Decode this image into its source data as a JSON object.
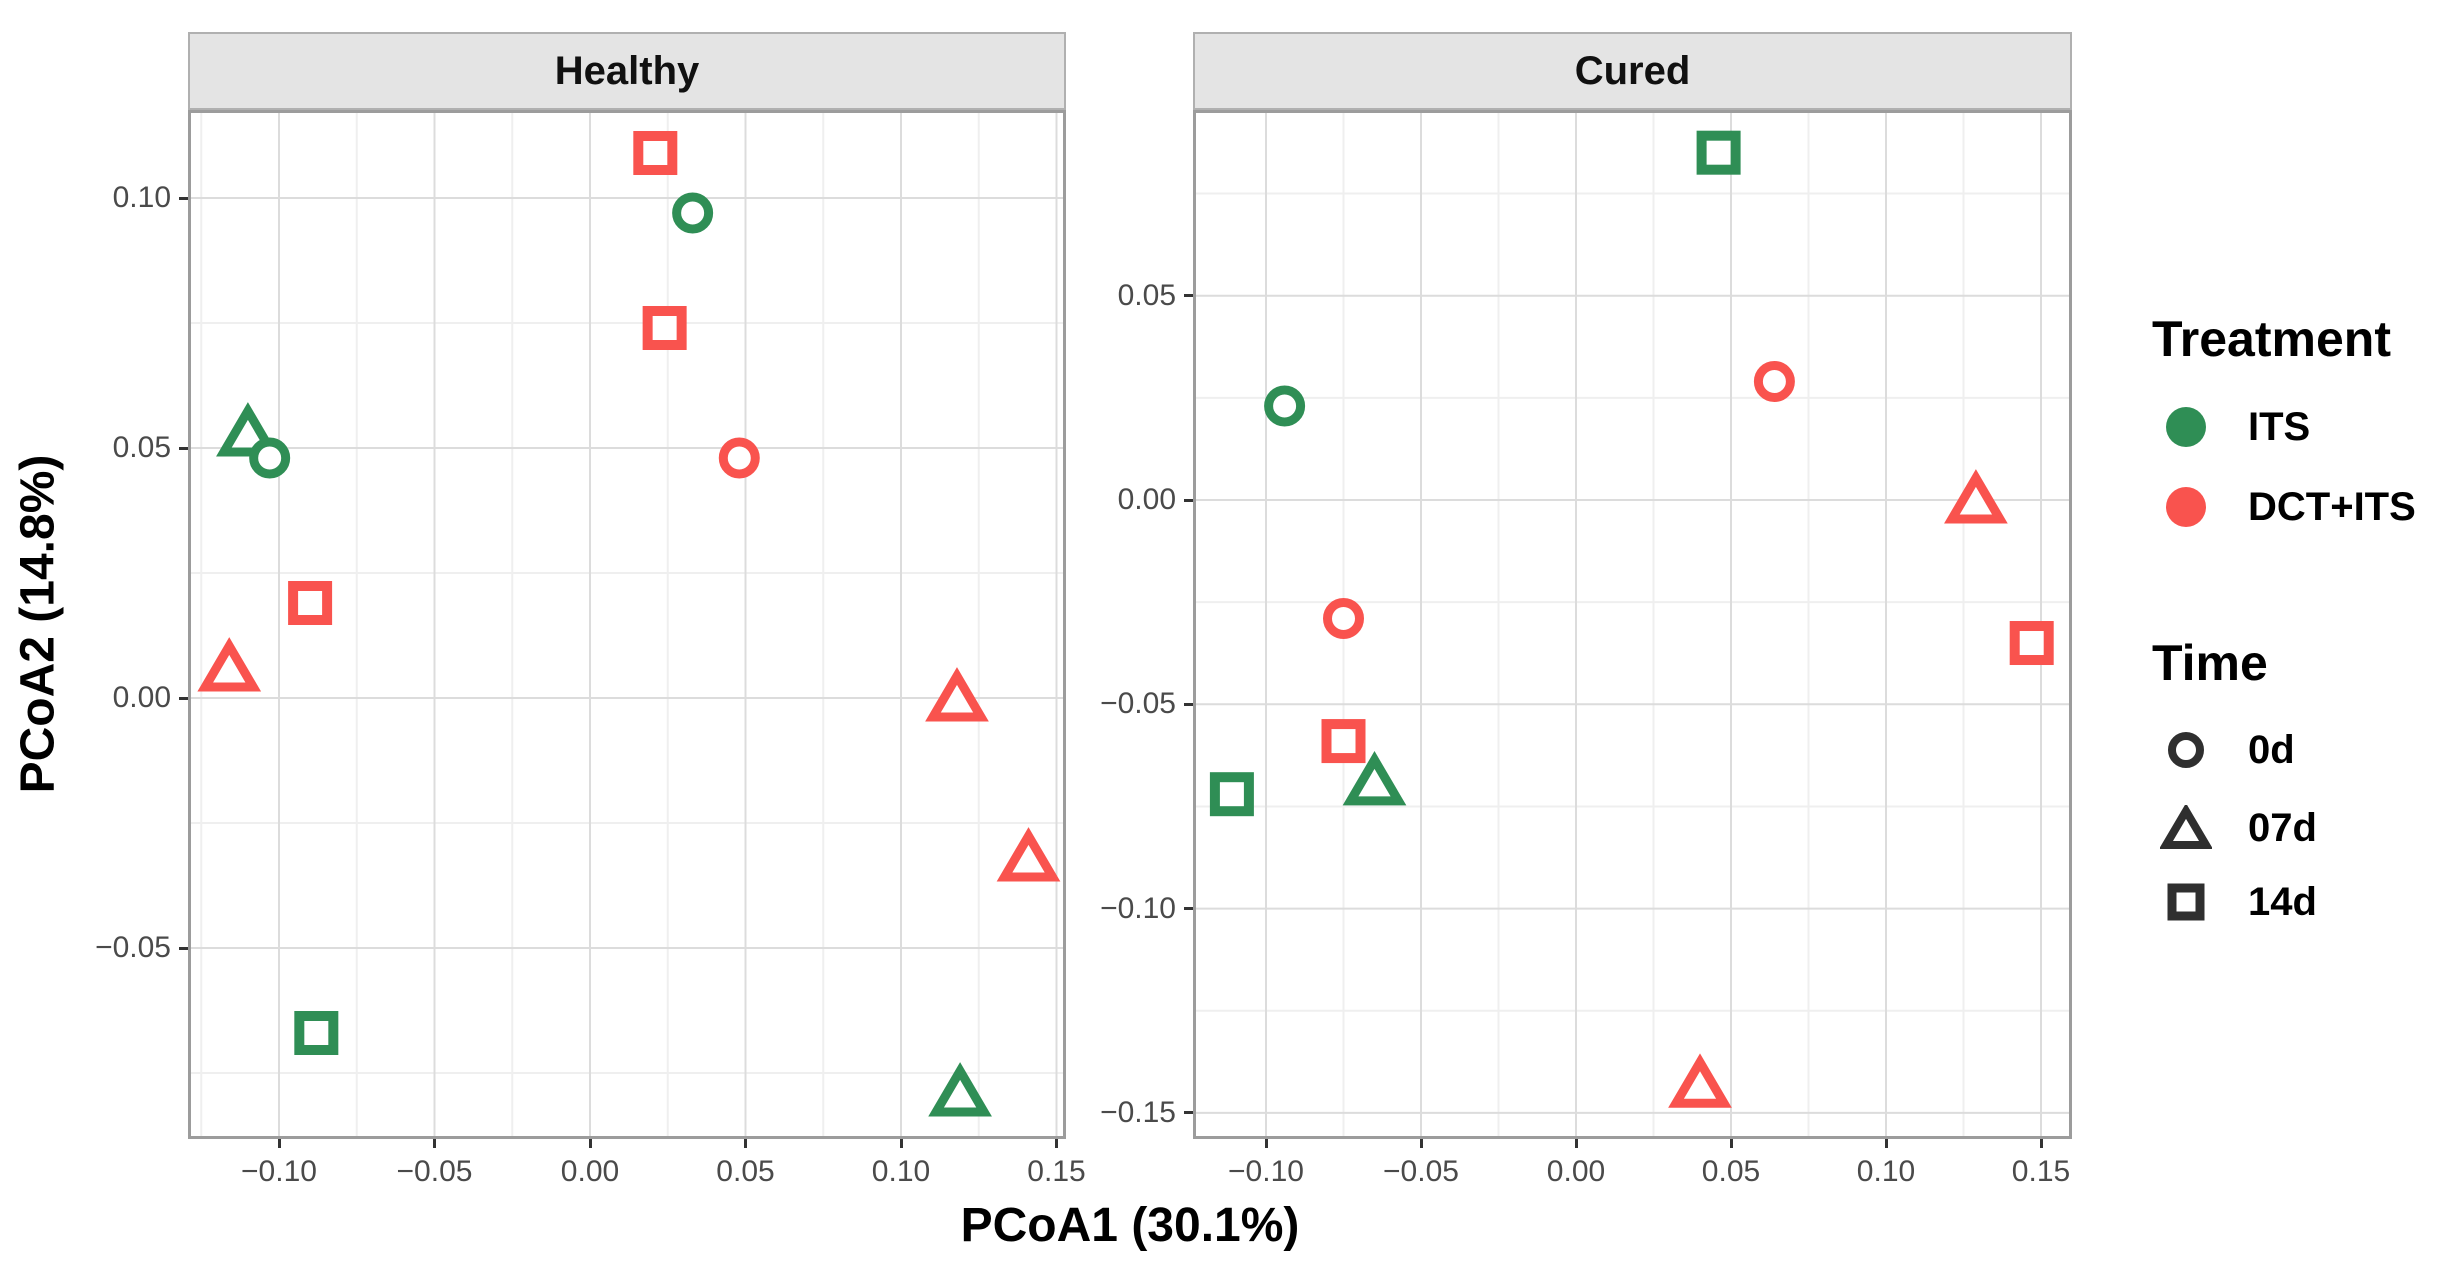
{
  "chart_data": {
    "type": "scatter",
    "faceted": true,
    "xlabel": "PCoA1 (30.1%)",
    "ylabel": "PCoA2 (14.8%)",
    "grid": "major+minor",
    "colors": {
      "ITS": "#2F8E55",
      "DCT+ITS": "#F9534E",
      "time_glyph": "#2F2F2F"
    },
    "shapes_by_time": {
      "0d": "circle",
      "07d": "triangle",
      "14d": "square"
    },
    "legend": {
      "treatment": {
        "title": "Treatment",
        "items": [
          {
            "label": "ITS",
            "color": "#2F8E55"
          },
          {
            "label": "DCT+ITS",
            "color": "#F9534E"
          }
        ]
      },
      "time": {
        "title": "Time",
        "items": [
          {
            "label": "0d",
            "shape": "circle"
          },
          {
            "label": "07d",
            "shape": "triangle"
          },
          {
            "label": "14d",
            "shape": "square"
          }
        ]
      }
    },
    "panels": [
      {
        "title": "Healthy",
        "x_domain": [
          -0.1293,
          0.1531
        ],
        "y_domain": [
          -0.0882,
          0.1176
        ],
        "x_ticks": [
          {
            "v": -0.1,
            "label": "−0.10"
          },
          {
            "v": -0.05,
            "label": "−0.05"
          },
          {
            "v": 0.0,
            "label": "0.00"
          },
          {
            "v": 0.05,
            "label": "0.05"
          },
          {
            "v": 0.1,
            "label": "0.10"
          },
          {
            "v": 0.15,
            "label": "0.15"
          }
        ],
        "y_ticks": [
          {
            "v": 0.1,
            "label": "0.10"
          },
          {
            "v": 0.05,
            "label": "0.05"
          },
          {
            "v": 0.0,
            "label": "0.00"
          },
          {
            "v": -0.05,
            "label": "−0.05"
          }
        ],
        "x_minor": [
          -0.125,
          -0.075,
          -0.025,
          0.025,
          0.075,
          0.125
        ],
        "y_minor": [
          0.075,
          0.025,
          -0.025,
          -0.075
        ],
        "points": [
          {
            "x": 0.021,
            "y": 0.109,
            "treatment": "DCT+ITS",
            "time": "14d"
          },
          {
            "x": 0.033,
            "y": 0.097,
            "treatment": "ITS",
            "time": "0d"
          },
          {
            "x": 0.024,
            "y": 0.074,
            "treatment": "DCT+ITS",
            "time": "14d"
          },
          {
            "x": 0.048,
            "y": 0.048,
            "treatment": "DCT+ITS",
            "time": "0d"
          },
          {
            "x": -0.11,
            "y": 0.053,
            "treatment": "ITS",
            "time": "07d"
          },
          {
            "x": -0.103,
            "y": 0.048,
            "treatment": "ITS",
            "time": "0d"
          },
          {
            "x": -0.09,
            "y": 0.019,
            "treatment": "DCT+ITS",
            "time": "14d"
          },
          {
            "x": -0.116,
            "y": 0.006,
            "treatment": "DCT+ITS",
            "time": "07d"
          },
          {
            "x": 0.118,
            "y": 0.0,
            "treatment": "DCT+ITS",
            "time": "07d"
          },
          {
            "x": 0.141,
            "y": -0.032,
            "treatment": "DCT+ITS",
            "time": "07d"
          },
          {
            "x": -0.088,
            "y": -0.067,
            "treatment": "ITS",
            "time": "14d"
          },
          {
            "x": 0.119,
            "y": -0.079,
            "treatment": "ITS",
            "time": "07d"
          }
        ]
      },
      {
        "title": "Cured",
        "x_domain": [
          -0.1235,
          0.16
        ],
        "y_domain": [
          -0.1564,
          0.0954
        ],
        "x_ticks": [
          {
            "v": -0.1,
            "label": "−0.10"
          },
          {
            "v": -0.05,
            "label": "−0.05"
          },
          {
            "v": 0.0,
            "label": "0.00"
          },
          {
            "v": 0.05,
            "label": "0.05"
          },
          {
            "v": 0.1,
            "label": "0.10"
          },
          {
            "v": 0.15,
            "label": "0.15"
          }
        ],
        "y_ticks": [
          {
            "v": 0.05,
            "label": "0.05"
          },
          {
            "v": 0.0,
            "label": "0.00"
          },
          {
            "v": -0.05,
            "label": "−0.05"
          },
          {
            "v": -0.1,
            "label": "−0.10"
          },
          {
            "v": -0.15,
            "label": "−0.15"
          }
        ],
        "x_minor": [
          -0.075,
          -0.025,
          0.025,
          0.075,
          0.125
        ],
        "y_minor": [
          0.075,
          0.025,
          -0.025,
          -0.075,
          -0.125
        ],
        "points": [
          {
            "x": 0.046,
            "y": 0.085,
            "treatment": "ITS",
            "time": "14d"
          },
          {
            "x": -0.094,
            "y": 0.023,
            "treatment": "ITS",
            "time": "0d"
          },
          {
            "x": 0.064,
            "y": 0.029,
            "treatment": "DCT+ITS",
            "time": "0d"
          },
          {
            "x": 0.129,
            "y": 0.0,
            "treatment": "DCT+ITS",
            "time": "07d"
          },
          {
            "x": 0.147,
            "y": -0.035,
            "treatment": "DCT+ITS",
            "time": "14d"
          },
          {
            "x": -0.075,
            "y": -0.029,
            "treatment": "DCT+ITS",
            "time": "0d"
          },
          {
            "x": -0.075,
            "y": -0.059,
            "treatment": "DCT+ITS",
            "time": "14d"
          },
          {
            "x": -0.065,
            "y": -0.069,
            "treatment": "ITS",
            "time": "07d"
          },
          {
            "x": -0.111,
            "y": -0.072,
            "treatment": "ITS",
            "time": "14d"
          },
          {
            "x": 0.04,
            "y": -0.143,
            "treatment": "DCT+ITS",
            "time": "07d"
          }
        ]
      }
    ]
  }
}
